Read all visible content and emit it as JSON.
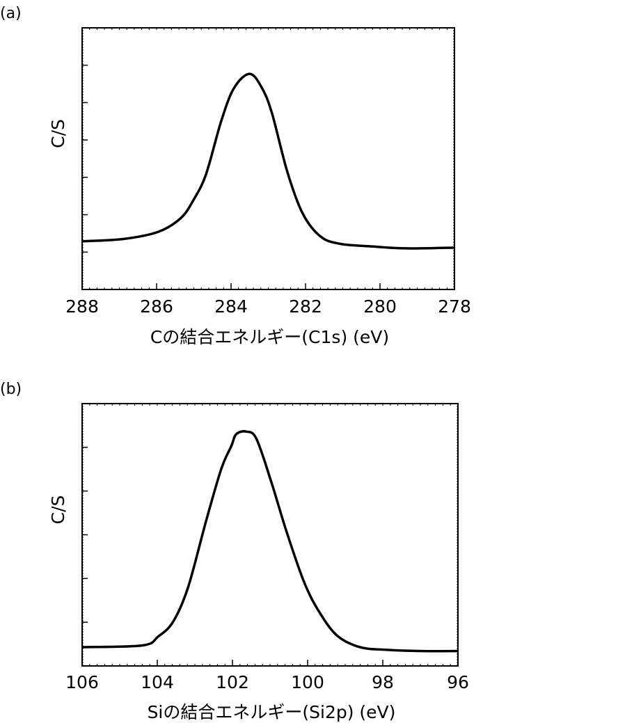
{
  "chart_data": [
    {
      "type": "line",
      "panel_label": "(a)",
      "title": "",
      "xlabel": "Cの結合エネルギー(C1s) (eV)",
      "ylabel": "C/S",
      "xlim": [
        288,
        278
      ],
      "ylim": [
        0,
        7
      ],
      "xticks": [
        288,
        286,
        284,
        282,
        280,
        278
      ],
      "xtick_labels": [
        "288",
        "286",
        "284",
        "282",
        "280",
        "278"
      ],
      "yticks": [
        1,
        2,
        3,
        4,
        5,
        6
      ],
      "grid": false,
      "series": [
        {
          "name": "C1s",
          "x": [
            288,
            286.9,
            285.96,
            285.35,
            285.0,
            284.67,
            284.26,
            283.92,
            283.5,
            283.17,
            282.9,
            282.49,
            282.08,
            281.6,
            281.06,
            280.18,
            279.3,
            278
          ],
          "y": [
            1.29,
            1.35,
            1.54,
            1.91,
            2.41,
            3.09,
            4.52,
            5.39,
            5.77,
            5.39,
            4.71,
            3.15,
            2.04,
            1.42,
            1.22,
            1.15,
            1.1,
            1.12
          ]
        }
      ]
    },
    {
      "type": "line",
      "panel_label": "(b)",
      "title": "",
      "xlabel": "Siの結合エネルギー(Si2p) (eV)",
      "ylabel": "C/S",
      "xlim": [
        106,
        96
      ],
      "ylim": [
        0,
        6
      ],
      "xticks": [
        106,
        104,
        102,
        100,
        98,
        96
      ],
      "xtick_labels": [
        "106",
        "104",
        "102",
        "100",
        "98",
        "96"
      ],
      "yticks": [
        1,
        2,
        3,
        4,
        5
      ],
      "grid": false,
      "series": [
        {
          "name": "Si2p",
          "x": [
            106,
            104.39,
            103.98,
            103.58,
            103.18,
            102.71,
            102.3,
            102.03,
            101.9,
            101.63,
            101.36,
            100.96,
            100.56,
            100.09,
            99.68,
            99.21,
            98.61,
            97.94,
            96.93,
            96
          ],
          "y": [
            0.43,
            0.47,
            0.67,
            1.01,
            1.8,
            3.29,
            4.5,
            5.03,
            5.3,
            5.36,
            5.19,
            4.19,
            3.07,
            1.91,
            1.22,
            0.69,
            0.43,
            0.37,
            0.34,
            0.34
          ]
        }
      ]
    }
  ]
}
